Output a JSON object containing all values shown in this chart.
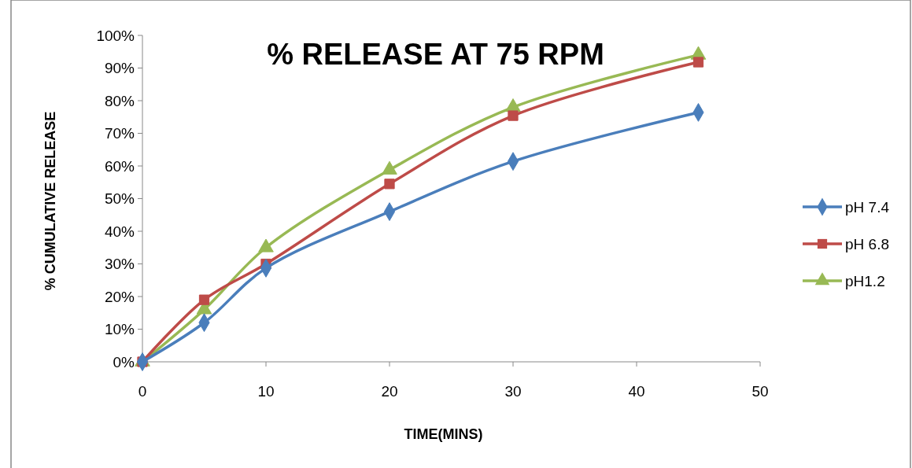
{
  "chart_data": {
    "type": "line",
    "title": "% RELEASE AT 75 RPM",
    "xlabel": "TIME(MINS)",
    "ylabel": "% CUMULATIVE RELEASE",
    "x": [
      0,
      5,
      10,
      20,
      30,
      45
    ],
    "series": [
      {
        "name": "pH 7.4",
        "color": "#4a7ebb",
        "marker": "diamond",
        "values": [
          0,
          12,
          28.7,
          46,
          61.4,
          76.4
        ]
      },
      {
        "name": "pH 6.8",
        "color": "#be4b48",
        "marker": "square",
        "values": [
          0,
          19,
          30,
          54.5,
          75.4,
          91.8
        ]
      },
      {
        "name": "pH1.2",
        "color": "#98b954",
        "marker": "triangle",
        "values": [
          0,
          16,
          35,
          58.8,
          78,
          94
        ]
      }
    ],
    "xlim": [
      0,
      50
    ],
    "xticks": [
      0,
      10,
      20,
      30,
      40,
      50
    ],
    "ylim": [
      0,
      100
    ],
    "yticks": [
      {
        "value": 0,
        "label": "0%"
      },
      {
        "value": 10,
        "label": "10%"
      },
      {
        "value": 20,
        "label": "20%"
      },
      {
        "value": 30,
        "label": "30%"
      },
      {
        "value": 40,
        "label": "40%"
      },
      {
        "value": 50,
        "label": "50%"
      },
      {
        "value": 60,
        "label": "60%"
      },
      {
        "value": 70,
        "label": "70%"
      },
      {
        "value": 80,
        "label": "80%"
      },
      {
        "value": 90,
        "label": "90%"
      },
      {
        "value": 100,
        "label": "100%"
      }
    ],
    "grid": false,
    "legend": "right",
    "line_style": "solid"
  }
}
